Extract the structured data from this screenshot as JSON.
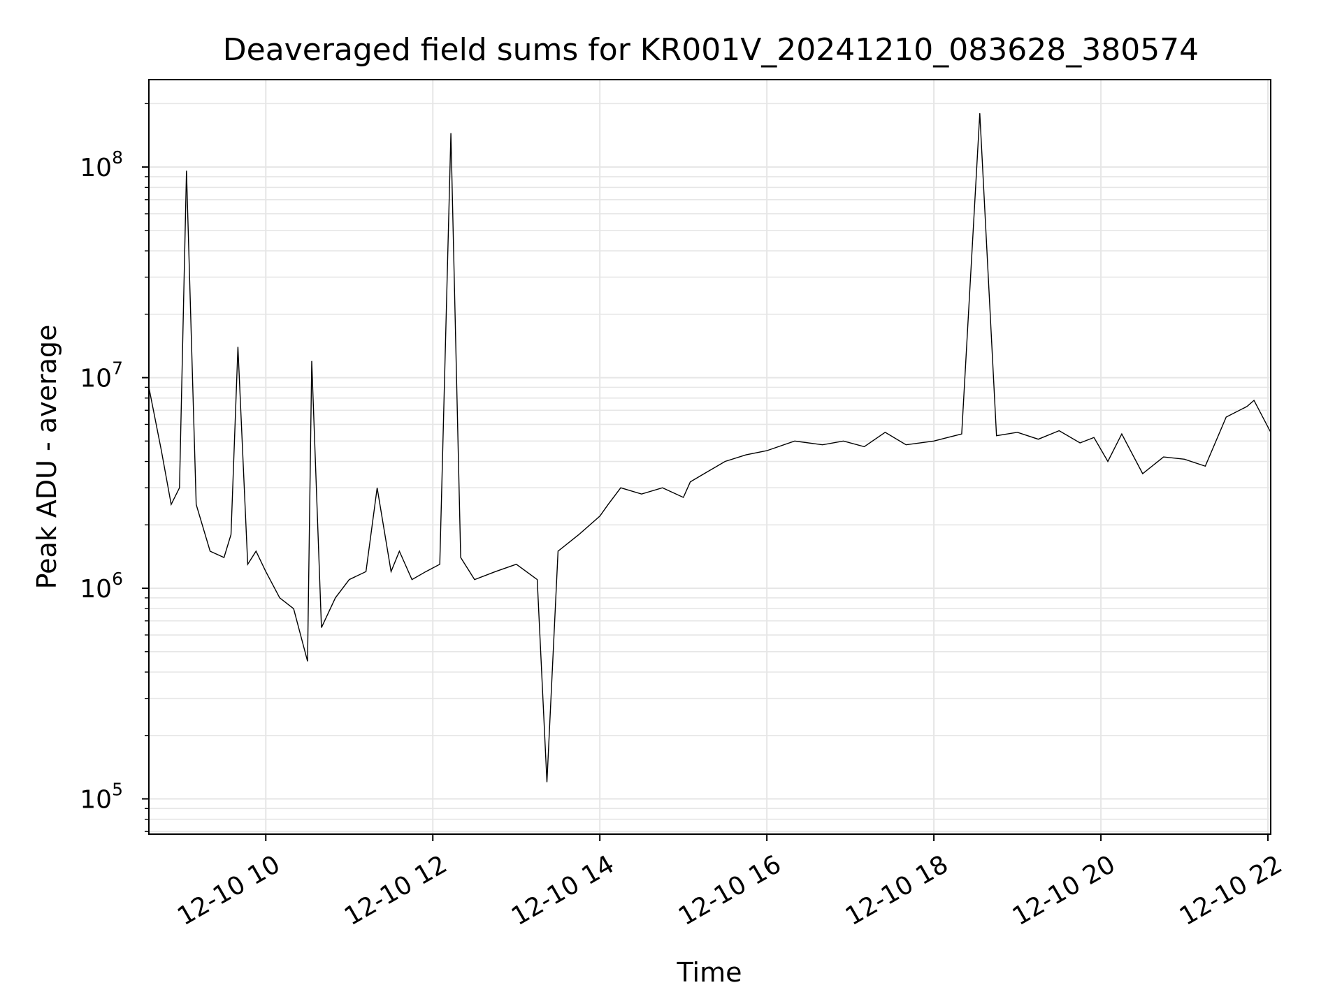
{
  "chart_data": {
    "type": "line",
    "title": "Deaveraged field sums for KR001V_20241210_083628_380574",
    "xlabel": "Time",
    "ylabel": "Peak ADU - average",
    "yscale": "log",
    "ylim": [
      68000,
      260000000
    ],
    "xlim": [
      "2024-12-10 08:36",
      "2024-12-10 22:02"
    ],
    "x_ticks": [
      {
        "value": "2024-12-10 10:00",
        "label": "12-10 10"
      },
      {
        "value": "2024-12-10 12:00",
        "label": "12-10 12"
      },
      {
        "value": "2024-12-10 14:00",
        "label": "12-10 14"
      },
      {
        "value": "2024-12-10 16:00",
        "label": "12-10 16"
      },
      {
        "value": "2024-12-10 18:00",
        "label": "12-10 18"
      },
      {
        "value": "2024-12-10 20:00",
        "label": "12-10 20"
      },
      {
        "value": "2024-12-10 22:00",
        "label": "12-10 22"
      }
    ],
    "y_ticks": [
      {
        "value": 100000,
        "base": "10",
        "exp": "5"
      },
      {
        "value": 1000000,
        "base": "10",
        "exp": "6"
      },
      {
        "value": 10000000,
        "base": "10",
        "exp": "7"
      },
      {
        "value": 100000000,
        "base": "10",
        "exp": "8"
      }
    ],
    "grid": true,
    "line_color": "#000000",
    "grid_color": "#e6e6e6",
    "series": [
      {
        "x": [
          "2024-12-10 08:36",
          "2024-12-10 08:45",
          "2024-12-10 08:52",
          "2024-12-10 08:58",
          "2024-12-10 09:03",
          "2024-12-10 09:10",
          "2024-12-10 09:20",
          "2024-12-10 09:30",
          "2024-12-10 09:35",
          "2024-12-10 09:40",
          "2024-12-10 09:47",
          "2024-12-10 09:53",
          "2024-12-10 10:00",
          "2024-12-10 10:10",
          "2024-12-10 10:20",
          "2024-12-10 10:30",
          "2024-12-10 10:33",
          "2024-12-10 10:40",
          "2024-12-10 10:50",
          "2024-12-10 11:00",
          "2024-12-10 11:12",
          "2024-12-10 11:20",
          "2024-12-10 11:30",
          "2024-12-10 11:36",
          "2024-12-10 11:45",
          "2024-12-10 11:55",
          "2024-12-10 12:05",
          "2024-12-10 12:13",
          "2024-12-10 12:20",
          "2024-12-10 12:30",
          "2024-12-10 12:45",
          "2024-12-10 13:00",
          "2024-12-10 13:15",
          "2024-12-10 13:22",
          "2024-12-10 13:30",
          "2024-12-10 13:45",
          "2024-12-10 14:00",
          "2024-12-10 14:06",
          "2024-12-10 14:15",
          "2024-12-10 14:30",
          "2024-12-10 14:45",
          "2024-12-10 15:00",
          "2024-12-10 15:05",
          "2024-12-10 15:15",
          "2024-12-10 15:30",
          "2024-12-10 15:45",
          "2024-12-10 16:00",
          "2024-12-10 16:20",
          "2024-12-10 16:40",
          "2024-12-10 16:55",
          "2024-12-10 17:10",
          "2024-12-10 17:25",
          "2024-12-10 17:40",
          "2024-12-10 18:00",
          "2024-12-10 18:10",
          "2024-12-10 18:20",
          "2024-12-10 18:33",
          "2024-12-10 18:45",
          "2024-12-10 19:00",
          "2024-12-10 19:15",
          "2024-12-10 19:30",
          "2024-12-10 19:45",
          "2024-12-10 19:55",
          "2024-12-10 20:05",
          "2024-12-10 20:15",
          "2024-12-10 20:30",
          "2024-12-10 20:45",
          "2024-12-10 21:00",
          "2024-12-10 21:15",
          "2024-12-10 21:30",
          "2024-12-10 21:45",
          "2024-12-10 21:50",
          "2024-12-10 22:02"
        ],
        "y": [
          9000000,
          4500000,
          2500000,
          3000000,
          96000000,
          2500000,
          1500000,
          1400000,
          1800000,
          14000000,
          1300000,
          1500000,
          1200000,
          900000,
          800000,
          450000,
          12000000,
          650000,
          900000,
          1100000,
          1200000,
          3000000,
          1200000,
          1500000,
          1100000,
          1200000,
          1300000,
          145000000,
          1400000,
          1100000,
          1200000,
          1300000,
          1100000,
          120000,
          1500000,
          1800000,
          2200000,
          2500000,
          3000000,
          2800000,
          3000000,
          2700000,
          3200000,
          3500000,
          4000000,
          4300000,
          4500000,
          5000000,
          4800000,
          5000000,
          4700000,
          5500000,
          4800000,
          5000000,
          5200000,
          5400000,
          180000000,
          5300000,
          5500000,
          5100000,
          5600000,
          4900000,
          5200000,
          4000000,
          5400000,
          3500000,
          4200000,
          4100000,
          3800000,
          6500000,
          7300000,
          7800000,
          5500000
        ]
      }
    ]
  }
}
